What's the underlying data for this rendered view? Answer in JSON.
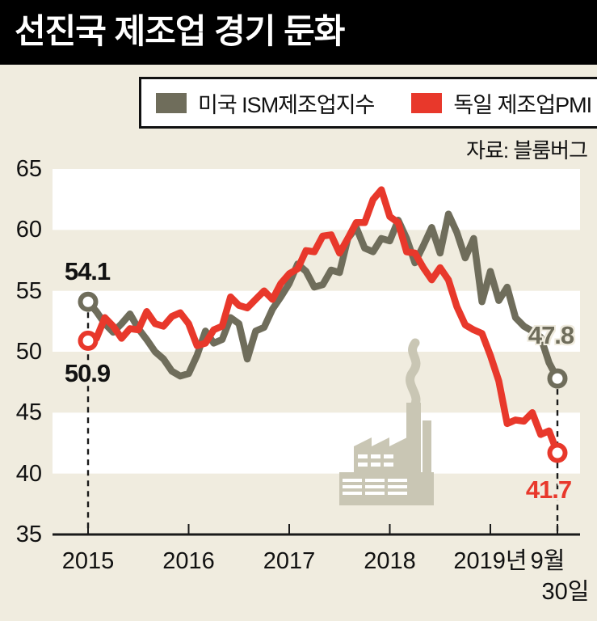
{
  "title": "선진국 제조업 경기 둔화",
  "legend": {
    "items": [
      {
        "label": "미국 ISM제조업지수",
        "color": "#6f6d5b"
      },
      {
        "label": "독일 제조업PMI",
        "color": "#e8382b"
      }
    ]
  },
  "source": "자료: 블룸버그",
  "colors": {
    "background": "#f0ecdf",
    "band": "#ffffff",
    "axis": "#1a1a1a",
    "text": "#111111",
    "us_line": "#6f6d5b",
    "germany_line": "#e8382b",
    "factory": "#c9c6b4"
  },
  "chart_data": {
    "type": "line",
    "title": "선진국 제조업 경기 둔화",
    "source": "자료: 블룸버그",
    "ylim": [
      35,
      65
    ],
    "y_ticks": [
      65,
      60,
      55,
      50,
      45,
      40,
      35
    ],
    "white_bands": [
      [
        60,
        65
      ],
      [
        50,
        55
      ],
      [
        40,
        45
      ]
    ],
    "x_start": "2015-01",
    "x_end_label": "9월 30일",
    "x_ticks": [
      {
        "month_index": 0,
        "label": "2015"
      },
      {
        "month_index": 12,
        "label": "2016"
      },
      {
        "month_index": 24,
        "label": "2017"
      },
      {
        "month_index": 36,
        "label": "2018"
      },
      {
        "month_index": 48,
        "label": "2019년"
      },
      {
        "month_index": 56,
        "label": "9월",
        "label2": "30일"
      }
    ],
    "series": [
      {
        "name": "미국 ISM제조업지수",
        "color": "#6f6d5b",
        "start_value": 54.1,
        "end_value": 47.8,
        "values": [
          54.1,
          53.3,
          52.3,
          51.6,
          52.3,
          53.1,
          51.9,
          51.0,
          50.0,
          49.4,
          48.4,
          48.0,
          48.2,
          49.7,
          51.7,
          50.7,
          51.0,
          52.8,
          52.3,
          49.4,
          51.7,
          52.0,
          53.5,
          54.5,
          55.6,
          57.2,
          56.6,
          55.3,
          55.5,
          56.7,
          56.5,
          59.3,
          60.2,
          58.5,
          58.2,
          59.3,
          59.1,
          60.8,
          59.3,
          57.3,
          58.7,
          60.2,
          58.1,
          61.3,
          59.8,
          57.7,
          59.3,
          54.1,
          56.6,
          54.2,
          55.3,
          52.8,
          52.1,
          51.7,
          51.2,
          49.1,
          47.8
        ]
      },
      {
        "name": "독일 제조업PMI",
        "color": "#e8382b",
        "start_value": 50.9,
        "end_value": 41.7,
        "values": [
          50.9,
          51.1,
          52.8,
          52.1,
          51.1,
          51.9,
          51.8,
          53.3,
          52.3,
          52.1,
          52.9,
          53.2,
          52.3,
          50.5,
          50.7,
          51.8,
          52.1,
          54.5,
          53.8,
          53.6,
          54.3,
          55.0,
          54.3,
          55.6,
          56.4,
          56.8,
          58.3,
          58.2,
          59.5,
          59.6,
          58.1,
          59.3,
          60.6,
          60.6,
          62.5,
          63.3,
          61.1,
          60.6,
          58.2,
          58.1,
          56.9,
          55.9,
          56.9,
          55.9,
          53.7,
          52.2,
          51.8,
          51.5,
          49.7,
          47.6,
          44.1,
          44.4,
          44.3,
          45.0,
          43.2,
          43.5,
          41.7
        ]
      }
    ],
    "annotations": [
      {
        "text": "54.1",
        "series": 0,
        "anchor": "start",
        "placement": "above",
        "color": "#111111"
      },
      {
        "text": "50.9",
        "series": 1,
        "anchor": "start",
        "placement": "below",
        "color": "#111111"
      },
      {
        "text": "47.8",
        "series": 0,
        "anchor": "end",
        "placement": "above",
        "color": "#6f6d5b"
      },
      {
        "text": "41.7",
        "series": 1,
        "anchor": "end",
        "placement": "below",
        "color": "#e8382b"
      }
    ]
  }
}
